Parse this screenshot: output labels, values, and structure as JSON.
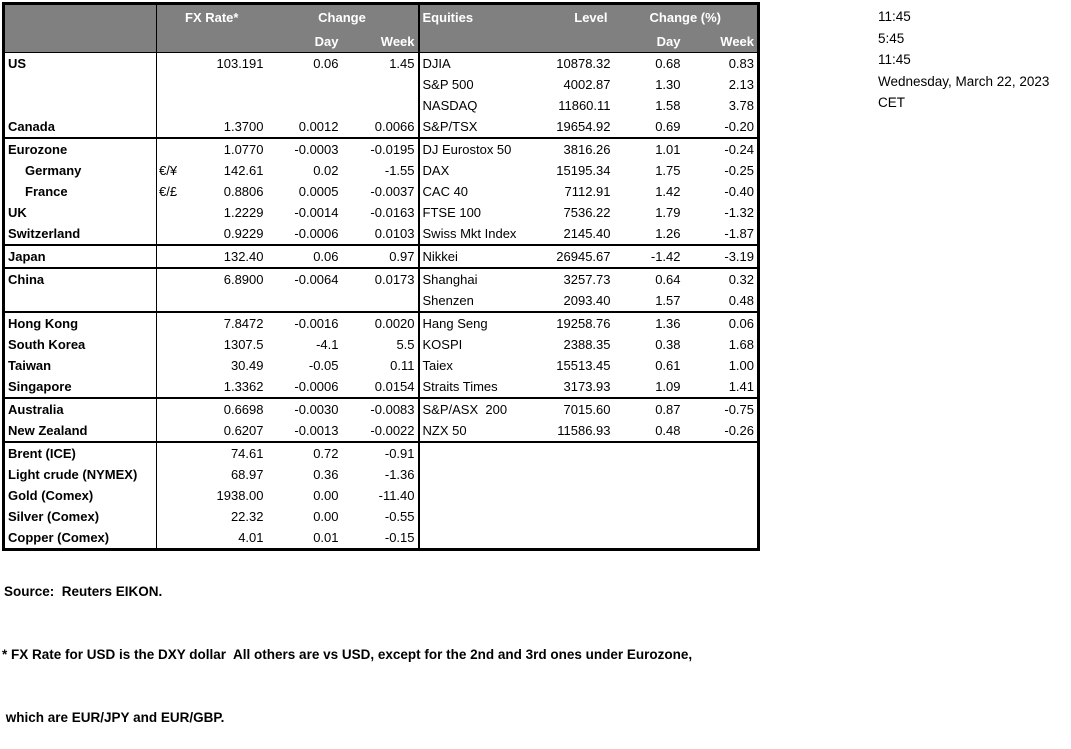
{
  "colors": {
    "header_bg": "#808080",
    "header_text": "#FFFFFF",
    "border": "#000000"
  },
  "table": {
    "fx_header": {
      "rate": "FX Rate*",
      "change": "Change",
      "day": "Day",
      "week": "Week"
    },
    "eq_header": {
      "title": "Equities",
      "level": "Level",
      "change": "Change (%)",
      "day": "Day",
      "week": "Week"
    },
    "rows": [
      {
        "name": "US",
        "pair": "",
        "rate": "103.191",
        "day": "0.06",
        "week": "1.45",
        "eq_name": "DJIA",
        "eq_level": "10878.32",
        "eq_day": "0.68",
        "eq_week": "0.83"
      },
      {
        "name": "",
        "pair": "",
        "rate": "",
        "day": "",
        "week": "",
        "eq_name": "S&P 500",
        "eq_level": "4002.87",
        "eq_day": "1.30",
        "eq_week": "2.13"
      },
      {
        "name": "",
        "pair": "",
        "rate": "",
        "day": "",
        "week": "",
        "eq_name": "NASDAQ",
        "eq_level": "11860.11",
        "eq_day": "1.58",
        "eq_week": "3.78"
      },
      {
        "name": "Canada",
        "pair": "",
        "rate": "1.3700",
        "day": "0.0012",
        "week": "0.0066",
        "eq_name": "S&P/TSX",
        "eq_level": "19654.92",
        "eq_day": "0.69",
        "eq_week": "-0.20"
      },
      {
        "border_top": true,
        "name": "Eurozone",
        "pair": "",
        "rate": "1.0770",
        "day": "-0.0003",
        "week": "-0.0195",
        "eq_name": "DJ Eurostox 50",
        "eq_level": "3816.26",
        "eq_day": "1.01",
        "eq_week": "-0.24"
      },
      {
        "indent": true,
        "name": "Germany",
        "pair": "€/¥",
        "rate": "142.61",
        "day": "0.02",
        "week": "-1.55",
        "eq_name": "DAX",
        "eq_level": "15195.34",
        "eq_day": "1.75",
        "eq_week": "-0.25"
      },
      {
        "indent": true,
        "name": "France",
        "pair": "€/£",
        "rate": "0.8806",
        "day": "0.0005",
        "week": "-0.0037",
        "eq_name": "CAC 40",
        "eq_level": "7112.91",
        "eq_day": "1.42",
        "eq_week": "-0.40"
      },
      {
        "name": "UK",
        "pair": "",
        "rate": "1.2229",
        "day": "-0.0014",
        "week": "-0.0163",
        "eq_name": "FTSE 100",
        "eq_level": "7536.22",
        "eq_day": "1.79",
        "eq_week": "-1.32"
      },
      {
        "name": "Switzerland",
        "pair": "",
        "rate": "0.9229",
        "day": "-0.0006",
        "week": "0.0103",
        "eq_name": "Swiss Mkt Index",
        "eq_level": "2145.40",
        "eq_day": "1.26",
        "eq_week": "-1.87"
      },
      {
        "border_top": true,
        "name": "Japan",
        "pair": "",
        "rate": "132.40",
        "day": "0.06",
        "week": "0.97",
        "eq_name": "Nikkei",
        "eq_level": "26945.67",
        "eq_day": "-1.42",
        "eq_week": "-3.19"
      },
      {
        "border_top": true,
        "name": "China",
        "pair": "",
        "rate": "6.8900",
        "day": "-0.0064",
        "week": "0.0173",
        "eq_name": "Shanghai",
        "eq_level": "3257.73",
        "eq_day": "0.64",
        "eq_week": "0.32"
      },
      {
        "name": "",
        "pair": "",
        "rate": "",
        "day": "",
        "week": "",
        "eq_name": "Shenzen",
        "eq_level": "2093.40",
        "eq_day": "1.57",
        "eq_week": "0.48"
      },
      {
        "border_top": true,
        "name": "Hong Kong",
        "pair": "",
        "rate": "7.8472",
        "day": "-0.0016",
        "week": "0.0020",
        "eq_name": "Hang Seng",
        "eq_level": "19258.76",
        "eq_day": "1.36",
        "eq_week": "0.06"
      },
      {
        "name": "South Korea",
        "pair": "",
        "rate": "1307.5",
        "day": "-4.1",
        "week": "5.5",
        "eq_name": "KOSPI",
        "eq_level": "2388.35",
        "eq_day": "0.38",
        "eq_week": "1.68"
      },
      {
        "name": "Taiwan",
        "pair": "",
        "rate": "30.49",
        "day": "-0.05",
        "week": "0.11",
        "eq_name": "Taiex",
        "eq_level": "15513.45",
        "eq_day": "0.61",
        "eq_week": "1.00"
      },
      {
        "name": "Singapore",
        "pair": "",
        "rate": "1.3362",
        "day": "-0.0006",
        "week": "0.0154",
        "eq_name": "Straits Times",
        "eq_level": "3173.93",
        "eq_day": "1.09",
        "eq_week": "1.41"
      },
      {
        "border_top": true,
        "name": "Australia",
        "pair": "",
        "rate": "0.6698",
        "day": "-0.0030",
        "week": "-0.0083",
        "eq_name": "S&P/ASX  200",
        "eq_level": "7015.60",
        "eq_day": "0.87",
        "eq_week": "-0.75"
      },
      {
        "name": "New Zealand",
        "pair": "",
        "rate": "0.6207",
        "day": "-0.0013",
        "week": "-0.0022",
        "eq_name": "NZX 50",
        "eq_level": "11586.93",
        "eq_day": "0.48",
        "eq_week": "-0.26"
      },
      {
        "border_top": true,
        "name": "Brent (ICE)",
        "pair": "",
        "rate": "74.61",
        "day": "0.72",
        "week": "-0.91",
        "eq_name": "",
        "eq_level": "",
        "eq_day": "",
        "eq_week": ""
      },
      {
        "name": "Light crude (NYMEX)",
        "pair": "",
        "rate": "68.97",
        "day": "0.36",
        "week": "-1.36",
        "eq_name": "",
        "eq_level": "",
        "eq_day": "",
        "eq_week": ""
      },
      {
        "name": "Gold (Comex)",
        "pair": "",
        "rate": "1938.00",
        "day": "0.00",
        "week": "-11.40",
        "eq_name": "",
        "eq_level": "",
        "eq_day": "",
        "eq_week": ""
      },
      {
        "name": "Silver (Comex)",
        "pair": "",
        "rate": "22.32",
        "day": "0.00",
        "week": "-0.55",
        "eq_name": "",
        "eq_level": "",
        "eq_day": "",
        "eq_week": ""
      },
      {
        "name": "Copper (Comex)",
        "pair": "",
        "rate": "4.01",
        "day": "0.01",
        "week": "-0.15",
        "eq_name": "",
        "eq_level": "",
        "eq_day": "",
        "eq_week": ""
      }
    ]
  },
  "timestamps": {
    "lines": [
      "11:45",
      "5:45",
      "11:45",
      "Wednesday, March 22, 2023",
      "CET"
    ]
  },
  "footer": {
    "source": "Source:  Reuters EIKON.",
    "note1": "* FX Rate for USD is the DXY dollar  All others are vs USD, except for the 2nd and 3rd ones under Eurozone,",
    "note2": " which are EUR/JPY and EUR/GBP."
  }
}
